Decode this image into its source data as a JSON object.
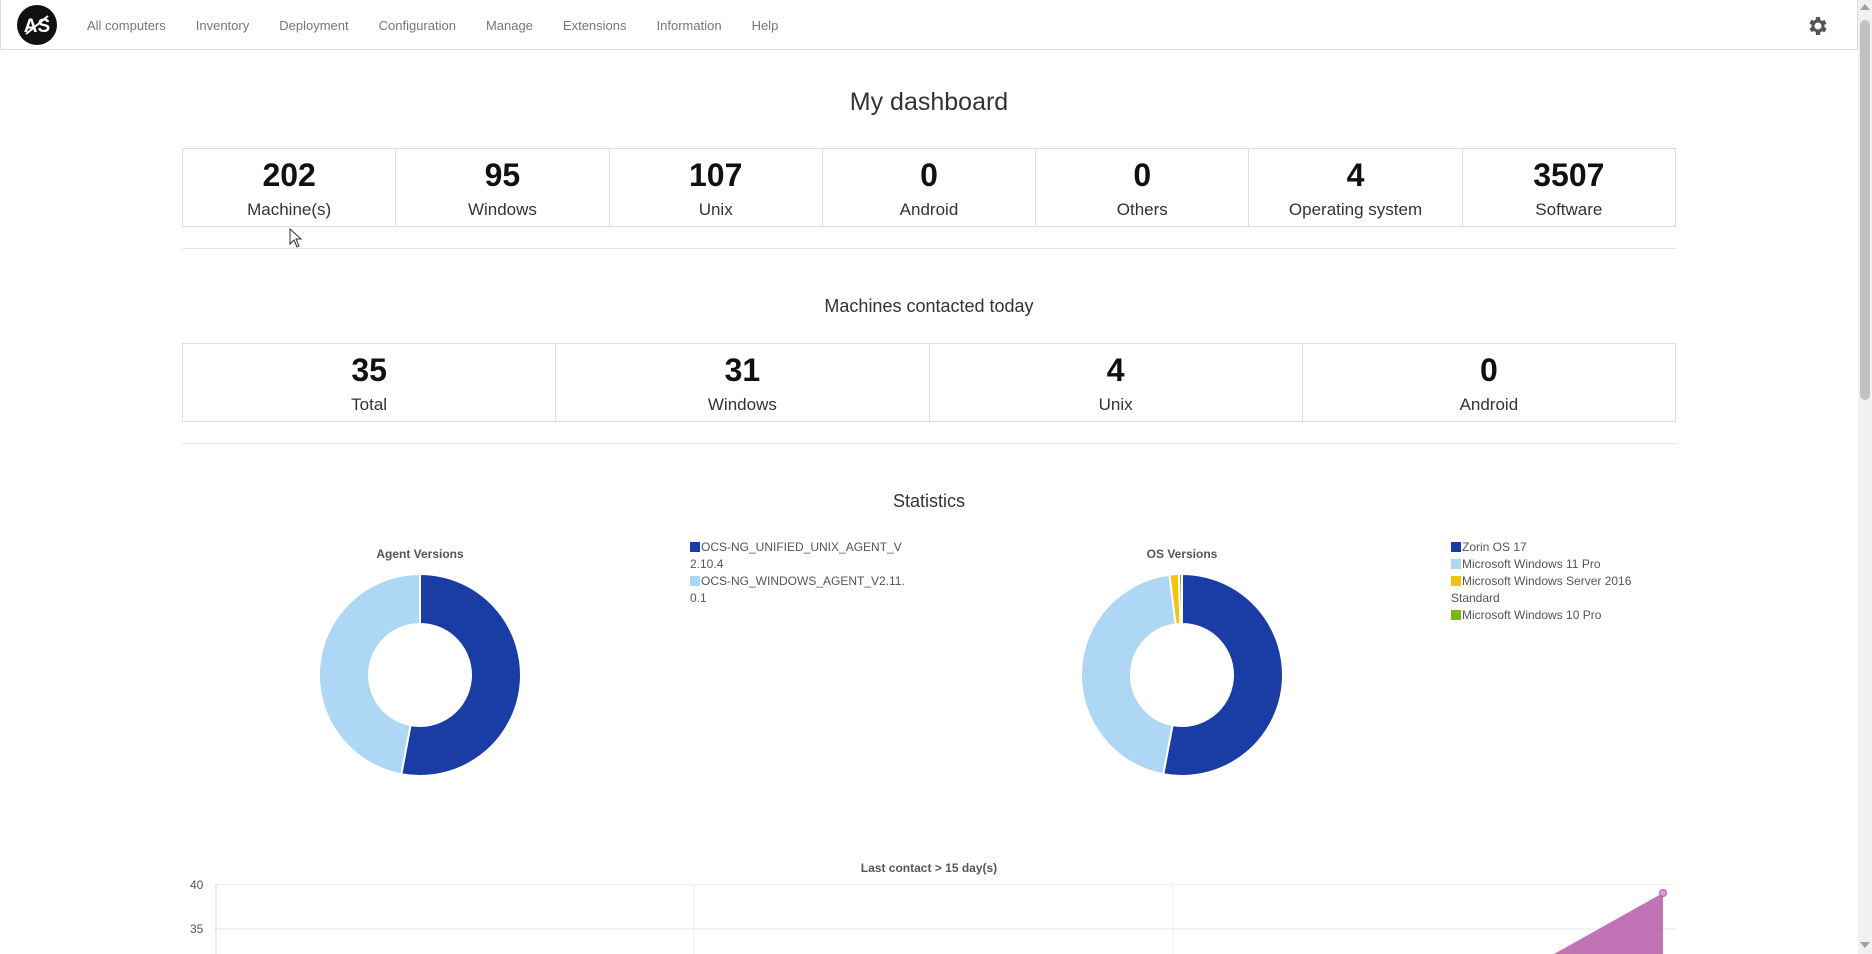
{
  "nav": {
    "items": [
      "All computers",
      "Inventory",
      "Deployment",
      "Configuration",
      "Manage",
      "Extensions",
      "Information",
      "Help"
    ]
  },
  "dashboard": {
    "title": "My dashboard",
    "stats": [
      {
        "value": "202",
        "label": "Machine(s)"
      },
      {
        "value": "95",
        "label": "Windows"
      },
      {
        "value": "107",
        "label": "Unix"
      },
      {
        "value": "0",
        "label": "Android"
      },
      {
        "value": "0",
        "label": "Others"
      },
      {
        "value": "4",
        "label": "Operating system"
      },
      {
        "value": "3507",
        "label": "Software"
      }
    ]
  },
  "contacted": {
    "title": "Machines contacted today",
    "stats": [
      {
        "value": "35",
        "label": "Total"
      },
      {
        "value": "31",
        "label": "Windows"
      },
      {
        "value": "4",
        "label": "Unix"
      },
      {
        "value": "0",
        "label": "Android"
      }
    ]
  },
  "statistics": {
    "title": "Statistics"
  },
  "colors": {
    "dark_blue": "#1a3da5",
    "light_blue": "#aed6f5",
    "yellow": "#f1c40f",
    "green": "#7cb518",
    "magenta": "#b55aa8"
  },
  "chart_data": [
    {
      "type": "pie",
      "title": "Agent Versions",
      "labels": [
        "OCS-NG_UNIFIED_UNIX_AGENT_V2.10.4",
        "OCS-NG_WINDOWS_AGENT_V2.11.0.1"
      ],
      "values": [
        107,
        95
      ],
      "colors": [
        "#1a3da5",
        "#aed6f5"
      ],
      "donut": true
    },
    {
      "type": "pie",
      "title": "OS Versions",
      "labels": [
        "Zorin OS 17",
        "Microsoft Windows 11 Pro",
        "Microsoft Windows Server 2016 Standard",
        "Microsoft Windows 10 Pro"
      ],
      "values": [
        107,
        91,
        3,
        1
      ],
      "colors": [
        "#1a3da5",
        "#aed6f5",
        "#f1c40f",
        "#7cb518"
      ],
      "donut": true
    },
    {
      "type": "area",
      "title": "Last contact > 15 day(s)",
      "ytick_labels": [
        "40",
        "35"
      ],
      "series_points": [
        {
          "x": 2.7,
          "y": 30
        },
        {
          "x": 3,
          "y": 39
        }
      ],
      "color": "#b55aa8"
    }
  ]
}
